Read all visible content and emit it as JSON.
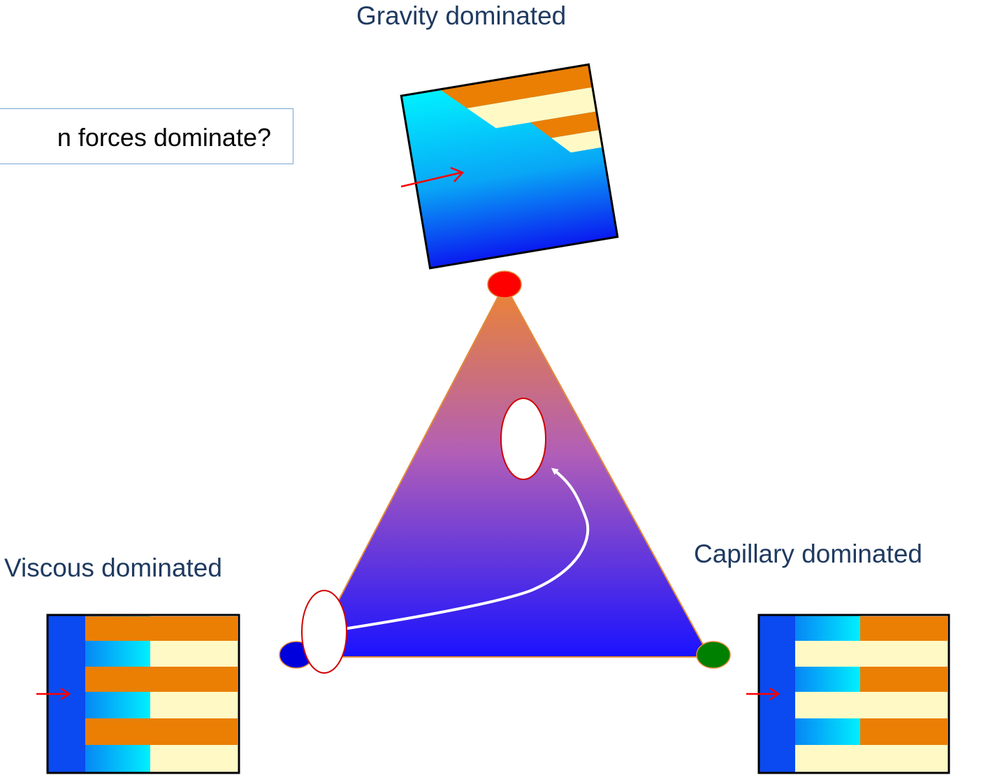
{
  "question": "n forces dominate?",
  "labels": {
    "gravity": "Gravity dominated",
    "viscous": "Viscous dominated",
    "capillary": "Capillary dominated"
  },
  "vertex_colors": {
    "gravity": "#ff0000",
    "viscous": "#0000dd",
    "capillary": "#008000"
  },
  "colors": {
    "triangle_top": "#ec8431",
    "triangle_bottom": "#1a12ff",
    "oil_layer": "#ea7f04",
    "water_layer": "#fff9c6",
    "inject_arrow": "#ff0000"
  }
}
